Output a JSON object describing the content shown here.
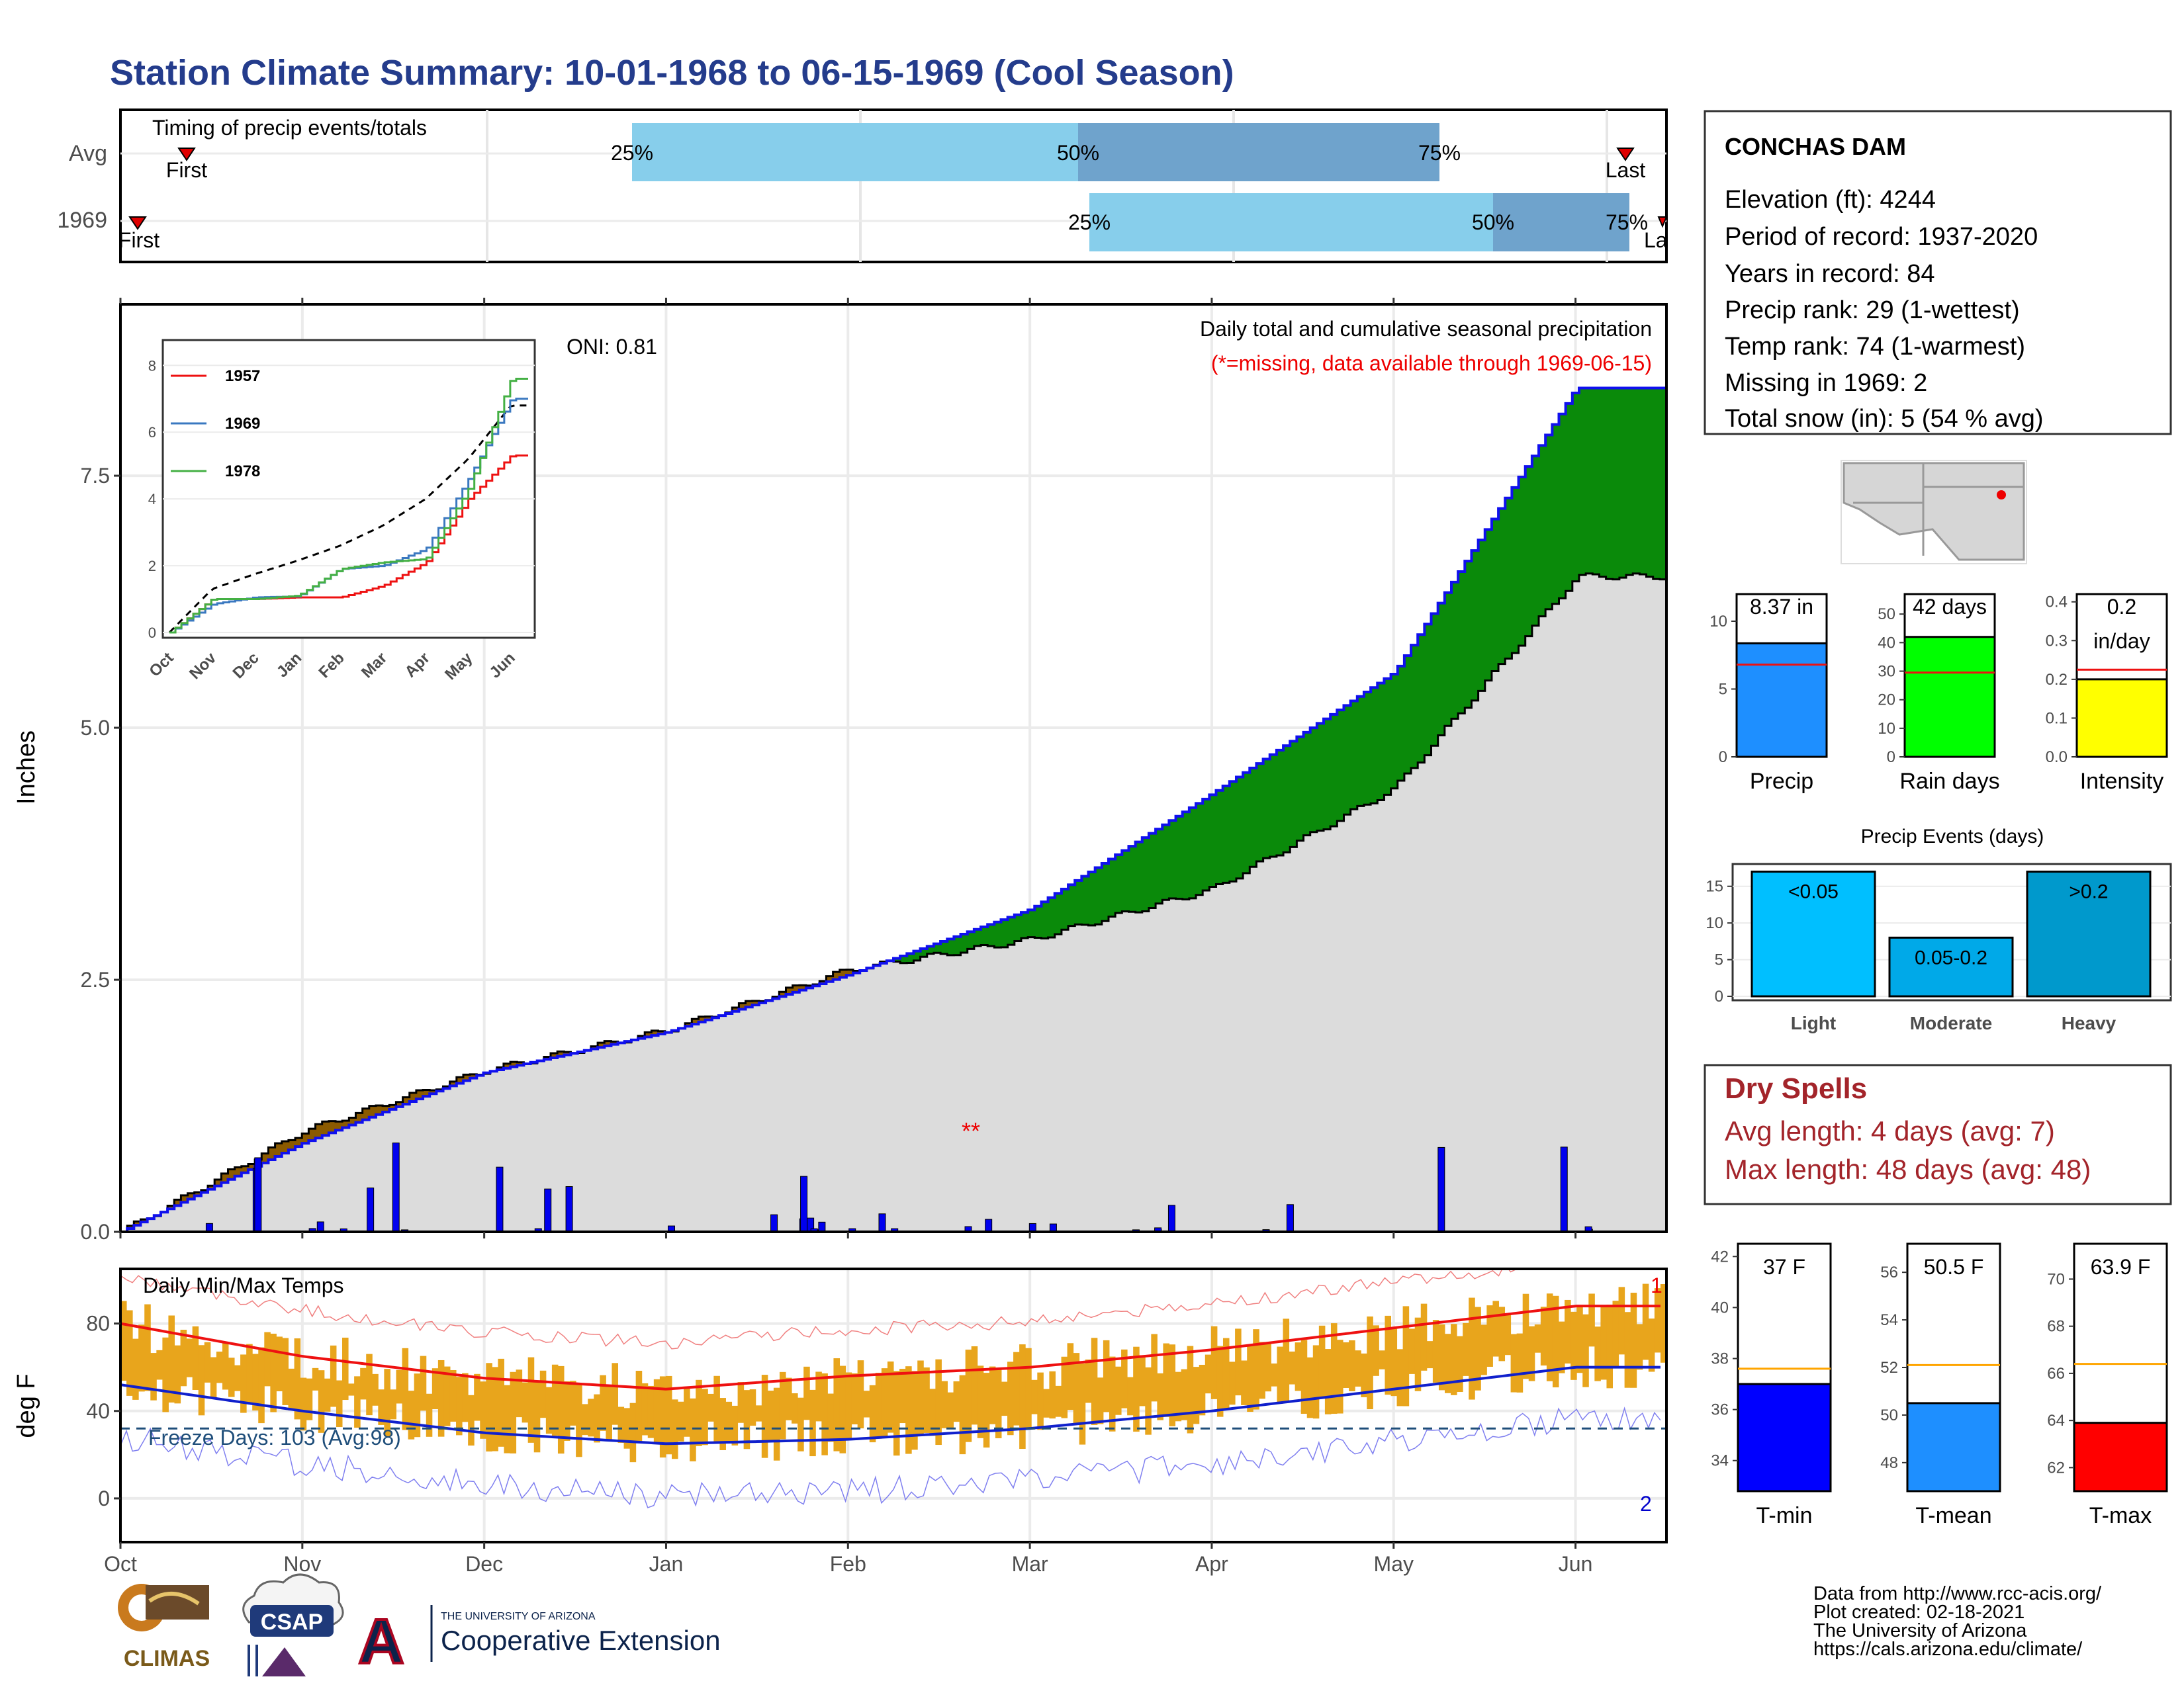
{
  "title": "Station Climate Summary: 10-01-1968 to 06-15-1969 (Cool Season)",
  "colors": {
    "title": "#243c8c",
    "q1": "#87ceeb",
    "q2": "#6fa3cc",
    "deficit": "#8b5a00",
    "surplus": "#0a8a0a",
    "current_line": "#1010ee",
    "bars": "#0000ee",
    "temp_bars": "#e8a51c",
    "tmax_line": "#ee1111",
    "tmin_line": "#1020cc",
    "dry": "#a3242a",
    "light": "#00bfff",
    "moderate": "#00a9e8",
    "heavy": "#0099cc"
  },
  "timing": {
    "label": "Timing of precip events/totals",
    "rows": [
      {
        "name": "Avg",
        "first_label": "First",
        "last_label": "Last",
        "q25_label": "25%",
        "q50_label": "50%",
        "q75_label": "75%"
      },
      {
        "name": "1969",
        "first_label": "First",
        "last_label": "La",
        "q25_label": "25%",
        "q50_label": "50%",
        "q75_label": "75%"
      }
    ]
  },
  "main": {
    "ylabel": "Inches",
    "oni": "ONI: 0.81",
    "note1": "Daily total and cumulative seasonal precipitation",
    "note2": "(*=missing, data available through 1969-06-15)",
    "yticks": [
      "0.0",
      "2.5",
      "5.0",
      "7.5"
    ],
    "months": [
      "Oct",
      "Nov",
      "Dec",
      "Jan",
      "Feb",
      "Mar",
      "Apr",
      "May",
      "Jun"
    ]
  },
  "inset": {
    "yticks": [
      "0",
      "2",
      "4",
      "6",
      "8"
    ],
    "months": [
      "Oct",
      "Nov",
      "Dec",
      "Jan",
      "Feb",
      "Mar",
      "Apr",
      "May",
      "Jun"
    ],
    "legend": [
      {
        "name": "1957",
        "color": "#ee1111"
      },
      {
        "name": "1969",
        "color": "#3a78c0"
      },
      {
        "name": "1978",
        "color": "#44b044"
      }
    ]
  },
  "temps": {
    "label": "Daily Min/Max Temps",
    "ylabel": "deg F",
    "yticks": [
      "0",
      "40",
      "80"
    ],
    "freeze": "Freeze Days: 103 (Avg:98)",
    "mark_top": "1",
    "mark_bottom": "2"
  },
  "station": {
    "name": "CONCHAS DAM",
    "lines": [
      "Elevation (ft): 4244",
      "Period of record: 1937-2020",
      "Years in record: 84",
      "Precip rank: 29 (1-wettest)",
      "Temp rank: 74 (1-warmest)",
      "Missing in 1969: 2",
      "Total snow (in): 5 (54 % avg)"
    ]
  },
  "mini_bars": [
    {
      "label": "Precip",
      "value_text": "8.37 in",
      "value": 8.37,
      "avg": 6.8,
      "ymax": 12,
      "yticks": [
        "0",
        "5",
        "10"
      ],
      "tickvals": [
        0,
        5,
        10
      ],
      "color": "#1e8fff"
    },
    {
      "label": "Rain days",
      "value_text": "42 days",
      "value": 42,
      "avg": 29.5,
      "ymax": 57,
      "yticks": [
        "0",
        "10",
        "20",
        "30",
        "40",
        "50"
      ],
      "tickvals": [
        0,
        10,
        20,
        30,
        40,
        50
      ],
      "color": "#00ff00"
    },
    {
      "label": "Intensity",
      "value_text": "0.2",
      "value_text2": "in/day",
      "value": 0.2,
      "avg": 0.225,
      "ymax": 0.42,
      "yticks": [
        "0.0",
        "0.1",
        "0.2",
        "0.3",
        "0.4"
      ],
      "tickvals": [
        0,
        0.1,
        0.2,
        0.3,
        0.4
      ],
      "color": "#ffff00"
    }
  ],
  "events": {
    "title": "Precip Events (days)",
    "yticks": [
      "0",
      "5",
      "10",
      "15"
    ],
    "bars": [
      {
        "name": "Light",
        "label": "<0.05",
        "value": 17
      },
      {
        "name": "Moderate",
        "label": "0.05-0.2",
        "value": 8
      },
      {
        "name": "Heavy",
        "label": ">0.2",
        "value": 17
      }
    ]
  },
  "dry": {
    "title": "Dry Spells",
    "line1": "Avg length: 4 days (avg: 7)",
    "line2": "Max length: 48 days (avg: 48)"
  },
  "temp_bars": [
    {
      "label": "T-min",
      "value_text": "37 F",
      "value": 37,
      "avg": 37.6,
      "ymin": 32.8,
      "ymax": 42.5,
      "yticks": [
        "34",
        "36",
        "38",
        "40",
        "42"
      ],
      "tickvals": [
        34,
        36,
        38,
        40,
        42
      ],
      "color": "#0000ff"
    },
    {
      "label": "T-mean",
      "value_text": "50.5 F",
      "value": 50.5,
      "avg": 52.1,
      "ymin": 46.8,
      "ymax": 57.2,
      "yticks": [
        "48",
        "50",
        "52",
        "54",
        "56"
      ],
      "tickvals": [
        48,
        50,
        52,
        54,
        56
      ],
      "color": "#1e8fff"
    },
    {
      "label": "T-max",
      "value_text": "63.9 F",
      "value": 63.9,
      "avg": 66.4,
      "ymin": 61,
      "ymax": 71.5,
      "yticks": [
        "62",
        "64",
        "66",
        "68",
        "70"
      ],
      "tickvals": [
        62,
        64,
        66,
        68,
        70
      ],
      "color": "#ff0000"
    }
  ],
  "credits": [
    "Data from http://www.rcc-acis.org/",
    "Plot created: 02-18-2021",
    "The University of Arizona",
    "https://cals.arizona.edu/climate/"
  ],
  "logos": {
    "climas": "CLIMAS",
    "csap": "CSAP",
    "ua_small": "THE UNIVERSITY OF ARIZONA",
    "ua_big": "Cooperative Extension",
    "ua_letter": "A"
  },
  "chart_data": [
    {
      "type": "area",
      "title": "Daily total and cumulative seasonal precipitation",
      "ylabel": "Inches",
      "ylim": [
        0,
        9.2
      ],
      "x": [
        "Oct",
        "Nov",
        "Dec",
        "Jan",
        "Feb",
        "Mar",
        "Apr",
        "May",
        "Jun"
      ],
      "series": [
        {
          "values": [
            0.0,
            0.88,
            1.58,
            1.98,
            2.55,
            3.2,
            4.35,
            5.55,
            8.37
          ]
        },
        {
          "values": [
            0.0,
            1.0,
            1.6,
            2.0,
            2.6,
            2.9,
            3.4,
            4.4,
            6.5
          ]
        }
      ]
    },
    {
      "type": "line",
      "ylim": [
        0,
        8.6
      ],
      "x": [
        "Oct",
        "Nov",
        "Dec",
        "Jan",
        "Feb",
        "Mar",
        "Apr",
        "May",
        "Jun"
      ],
      "series": [
        {
          "name": "1957",
          "values": [
            0.0,
            1.0,
            1.0,
            1.05,
            1.05,
            1.4,
            2.1,
            4.0,
            5.3
          ]
        },
        {
          "name": "1969",
          "values": [
            0.0,
            0.85,
            1.05,
            1.08,
            1.9,
            2.0,
            2.5,
            4.6,
            7.0
          ]
        },
        {
          "name": "1978",
          "values": [
            0.0,
            1.0,
            1.0,
            1.1,
            1.9,
            2.1,
            2.2,
            4.3,
            7.6
          ]
        }
      ]
    },
    {
      "type": "bar",
      "title": "Daily Min/Max Temps",
      "ylabel": "deg F",
      "ylim": [
        -20,
        105
      ],
      "x": [
        "Oct",
        "Nov",
        "Dec",
        "Jan",
        "Feb",
        "Mar",
        "Apr",
        "May",
        "Jun"
      ],
      "series": [
        {
          "values": [
            80,
            65,
            55,
            50,
            56,
            60,
            68,
            78,
            88
          ]
        },
        {
          "values": [
            52,
            40,
            30,
            25,
            27,
            32,
            40,
            50,
            60
          ]
        }
      ]
    },
    {
      "type": "bar",
      "title": "Precip Events (days)",
      "categories": [
        "Light",
        "Moderate",
        "Heavy"
      ],
      "values": [
        17,
        8,
        17
      ],
      "ylim": [
        0,
        17.5
      ]
    }
  ]
}
